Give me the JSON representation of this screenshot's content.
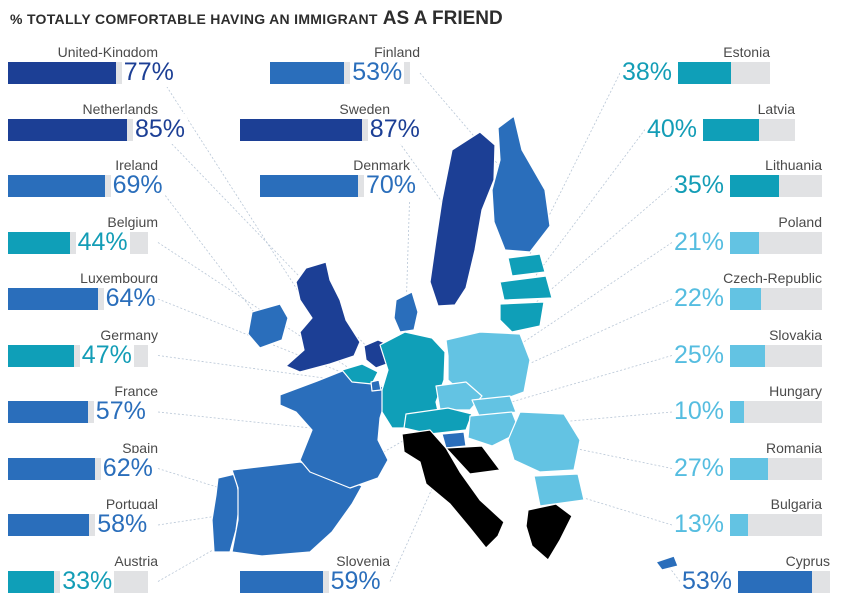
{
  "header": {
    "title_part1": "% TOTALLY COMFORTABLE HAVING AN IMMIGRANT",
    "title_part2": "AS A FRIEND"
  },
  "colors": {
    "dark_blue": "#1c3f95",
    "mid_blue": "#2a6ebb",
    "teal": "#0f9fb8",
    "light_blue": "#63c3e3",
    "bar_track": "#e1e2e4"
  },
  "chart_data": {
    "type": "bar",
    "title": "% TOTALLY COMFORTABLE HAVING AN IMMIGRANT AS A FRIEND",
    "ylim": [
      0,
      100
    ],
    "unit": "%",
    "categories": [
      "United-Kingdom",
      "Netherlands",
      "Ireland",
      "Belgium",
      "Luxembourg",
      "Germany",
      "France",
      "Spain",
      "Portugal",
      "Austria",
      "Finland",
      "Sweden",
      "Denmark",
      "Slovenia",
      "Estonia",
      "Latvia",
      "Lithuania",
      "Poland",
      "Czech-Republic",
      "Slovakia",
      "Hungary",
      "Romania",
      "Bulgaria",
      "Cyprus"
    ],
    "values": [
      77,
      85,
      69,
      44,
      64,
      47,
      57,
      62,
      58,
      33,
      53,
      87,
      70,
      59,
      38,
      40,
      35,
      21,
      22,
      25,
      10,
      27,
      13,
      53
    ],
    "labels": [
      "77%",
      "85%",
      "69%",
      "44%",
      "64%",
      "47%",
      "57%",
      "62%",
      "58%",
      "33%",
      "53%",
      "87%",
      "70%",
      "59%",
      "38%",
      "40%",
      "35%",
      "21%",
      "22%",
      "25%",
      "10%",
      "27%",
      "13%",
      "53%"
    ],
    "color_classes": [
      "dark",
      "dark",
      "mid",
      "teal",
      "mid",
      "teal",
      "mid",
      "mid",
      "mid",
      "teal",
      "mid",
      "dark",
      "mid",
      "mid",
      "teal",
      "teal",
      "teal",
      "light",
      "light",
      "light",
      "light",
      "light",
      "light",
      "mid"
    ]
  }
}
